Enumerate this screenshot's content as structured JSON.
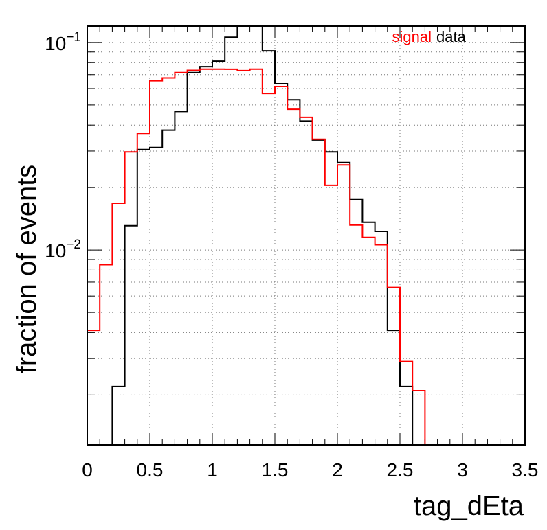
{
  "chart_data": {
    "type": "line",
    "style": "step-histogram",
    "title": "",
    "xlabel": "tag_dEta",
    "ylabel": "fraction of events",
    "xlim": [
      0,
      3.5
    ],
    "ylim": [
      0.00115,
      0.12
    ],
    "yscale": "log",
    "grid": true,
    "legend_position": "top-right",
    "x_tick_labels": [
      "0",
      "0.5",
      "1",
      "1.5",
      "2",
      "2.5",
      "3",
      "3.5"
    ],
    "x_ticks": [
      0,
      0.5,
      1,
      1.5,
      2,
      2.5,
      3,
      3.5
    ],
    "y_tick_labels": [
      {
        "base": "10",
        "exp": "−2",
        "value": 0.01
      },
      {
        "base": "10",
        "exp": "−1",
        "value": 0.1
      }
    ],
    "bin_edges": [
      0,
      0.1,
      0.2,
      0.3,
      0.4,
      0.5,
      0.6,
      0.7,
      0.8,
      0.9,
      1.0,
      1.1,
      1.2,
      1.3,
      1.4,
      1.5,
      1.6,
      1.7,
      1.8,
      1.9,
      2.0,
      2.1,
      2.2,
      2.3,
      2.4,
      2.5,
      2.6,
      2.7,
      2.8,
      2.9,
      3.0,
      3.1,
      3.2,
      3.3,
      3.4,
      3.5
    ],
    "series": [
      {
        "name": "signal",
        "color": "#ff0000",
        "values": [
          0.0041,
          0.0085,
          0.0168,
          0.0297,
          0.0365,
          0.0654,
          0.0675,
          0.0716,
          0.0734,
          0.0744,
          0.0744,
          0.0743,
          0.0732,
          0.0744,
          0.0568,
          0.0614,
          0.0477,
          0.0436,
          0.0342,
          0.0205,
          0.0257,
          0.0132,
          0.0115,
          0.0106,
          0.0066,
          0.0029,
          0.0021,
          0.00115,
          0.00115,
          0.00115,
          0.00115,
          0.00115,
          0.00115,
          0.00115,
          0.00115
        ]
      },
      {
        "name": "data",
        "color": "#000000",
        "values": [
          0.00115,
          0.00115,
          0.0022,
          0.0131,
          0.0305,
          0.0312,
          0.0378,
          0.0465,
          0.0716,
          0.0765,
          0.0813,
          0.106,
          0.12,
          0.12,
          0.0911,
          0.0633,
          0.053,
          0.0418,
          0.0339,
          0.0297,
          0.0264,
          0.0175,
          0.0136,
          0.0123,
          0.0041,
          0.0022,
          0.00115,
          0.00115,
          0.00115,
          0.00115,
          0.00115,
          0.00115,
          0.00115,
          0.00115,
          0.00115
        ]
      }
    ]
  }
}
